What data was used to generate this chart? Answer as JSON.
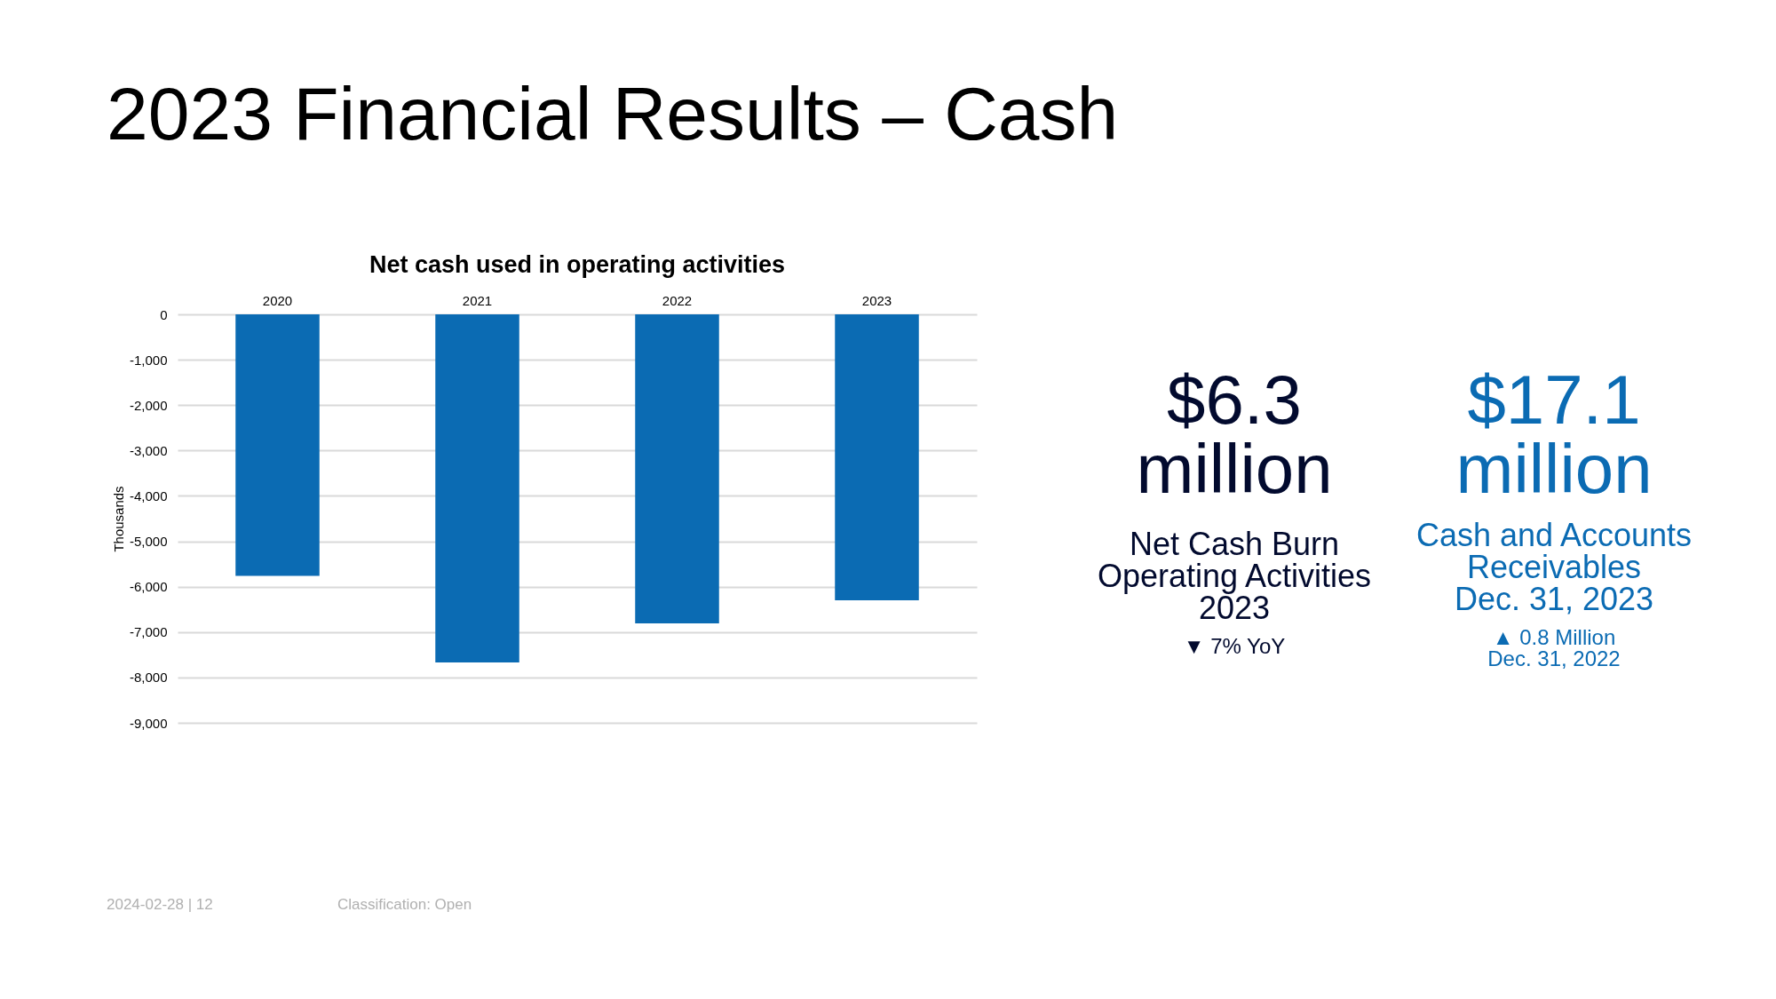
{
  "chart_data": [
    {
      "type": "bar",
      "title": "2023 Financial Results – Cash",
      "subtitle": "Net cash used in operating activities",
      "ylabel": "Thousands",
      "categories": [
        "2020",
        "2021",
        "2022",
        "2023"
      ],
      "values": [
        -5760,
        -7670,
        -6810,
        -6300
      ],
      "color": "#0b6bb3",
      "ylim": [
        -9000,
        0
      ],
      "yticks": [
        {
          "value": -9000,
          "label": "-9,000"
        },
        {
          "value": -8000,
          "label": "-8,000"
        },
        {
          "value": -7000,
          "label": "-7,000"
        },
        {
          "value": -6000,
          "label": "-6,000"
        },
        {
          "value": -5000,
          "label": "-5,000"
        },
        {
          "value": -4000,
          "label": "-4,000"
        },
        {
          "value": -3000,
          "label": "-3,000"
        },
        {
          "value": -2000,
          "label": "-2,000"
        },
        {
          "value": -1000,
          "label": "-1,000"
        },
        0
      ],
      "grid": "y",
      "annotations": [
        "2024-02-28 | 12",
        "Classification: Open"
      ]
    },
    {
      "type": "other",
      "annotations": [
        "$6.3\nmillion",
        "Net Cash Burn\nOperating Activities\n2023",
        "▼ 7% YoY",
        "$17.1\nmillion",
        "Cash and Accounts\nReceivables\nDec. 31, 2023",
        "▲ 0.8 Million\nDec. 31, 2022"
      ]
    }
  ]
}
